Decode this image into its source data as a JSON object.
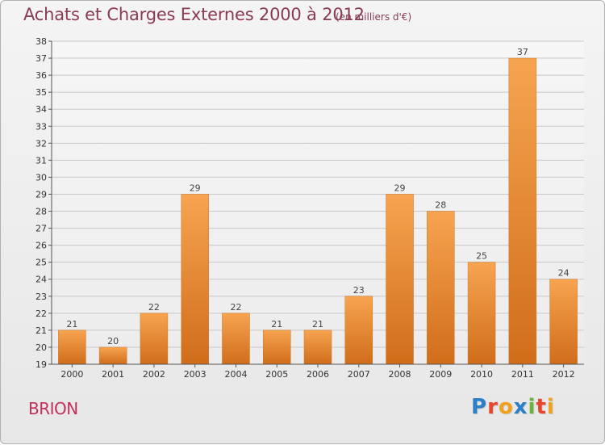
{
  "header": {
    "title": "Achats et Charges Externes 2000 à 2012",
    "subtitle": "(en milliers d'€)"
  },
  "footer": {
    "town": "BRION",
    "logo": [
      "P",
      "r",
      "o",
      "x",
      "i",
      "t",
      "i"
    ],
    "logo_colors": [
      "#2a7fc8",
      "#e8452c",
      "#f3a11c",
      "#2a7fc8",
      "#6bb33a",
      "#e8452c",
      "#f3a11c"
    ]
  },
  "colors": {
    "bar_top": "#f7a450",
    "bar_bottom": "#d06d1a",
    "grid": "#c8c8c8",
    "axis": "#555555"
  },
  "chart_data": {
    "type": "bar",
    "categories": [
      "2000",
      "2001",
      "2002",
      "2003",
      "2004",
      "2005",
      "2006",
      "2007",
      "2008",
      "2009",
      "2010",
      "2011",
      "2012"
    ],
    "values": [
      21,
      20,
      22,
      29,
      22,
      21,
      21,
      23,
      29,
      28,
      25,
      37,
      24
    ],
    "title": "Achats et Charges Externes 2000 à 2012",
    "xlabel": "",
    "ylabel": "",
    "ylim": [
      19,
      38
    ],
    "yticks": [
      19,
      20,
      21,
      22,
      23,
      24,
      25,
      26,
      27,
      28,
      29,
      30,
      31,
      32,
      33,
      34,
      35,
      36,
      37,
      38
    ],
    "grid": true,
    "legend": "none"
  }
}
